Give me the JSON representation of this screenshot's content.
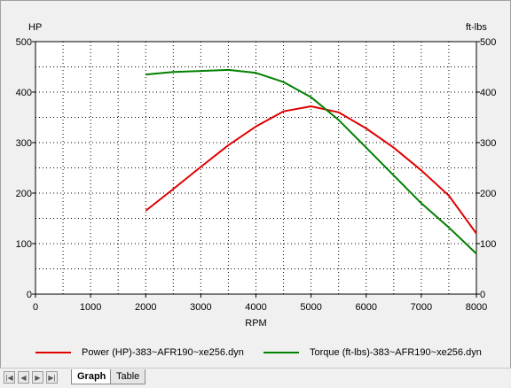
{
  "chart_data": {
    "type": "line",
    "xlabel": "RPM",
    "ylabel_left": "HP",
    "ylabel_right": "ft-lbs",
    "xlim": [
      0,
      8000
    ],
    "ylim": [
      0,
      500
    ],
    "xticks": [
      "0",
      "1000",
      "2000",
      "3000",
      "4000",
      "5000",
      "6000",
      "7000",
      "8000"
    ],
    "yticks": [
      "0",
      "100",
      "200",
      "300",
      "400",
      "500"
    ],
    "grid": true,
    "legend_position": "bottom",
    "series": [
      {
        "name": "Power (HP)-383~AFR190~xe256.dyn",
        "color": "#e00000",
        "x": [
          2000,
          2500,
          3000,
          3500,
          4000,
          4500,
          5000,
          5500,
          6000,
          6500,
          7000,
          7500,
          8000
        ],
        "y": [
          165,
          208,
          252,
          295,
          332,
          362,
          372,
          360,
          328,
          290,
          245,
          195,
          120
        ]
      },
      {
        "name": "Torque (ft-lbs)-383~AFR190~xe256.dyn",
        "color": "#008000",
        "x": [
          2000,
          2500,
          3000,
          3500,
          4000,
          4500,
          5000,
          5500,
          6000,
          6500,
          7000,
          7500,
          8000
        ],
        "y": [
          435,
          440,
          442,
          444,
          438,
          420,
          390,
          345,
          290,
          235,
          180,
          132,
          80
        ]
      }
    ]
  },
  "tabs": [
    {
      "label": "Graph",
      "active": true
    },
    {
      "label": "Table",
      "active": false
    }
  ]
}
